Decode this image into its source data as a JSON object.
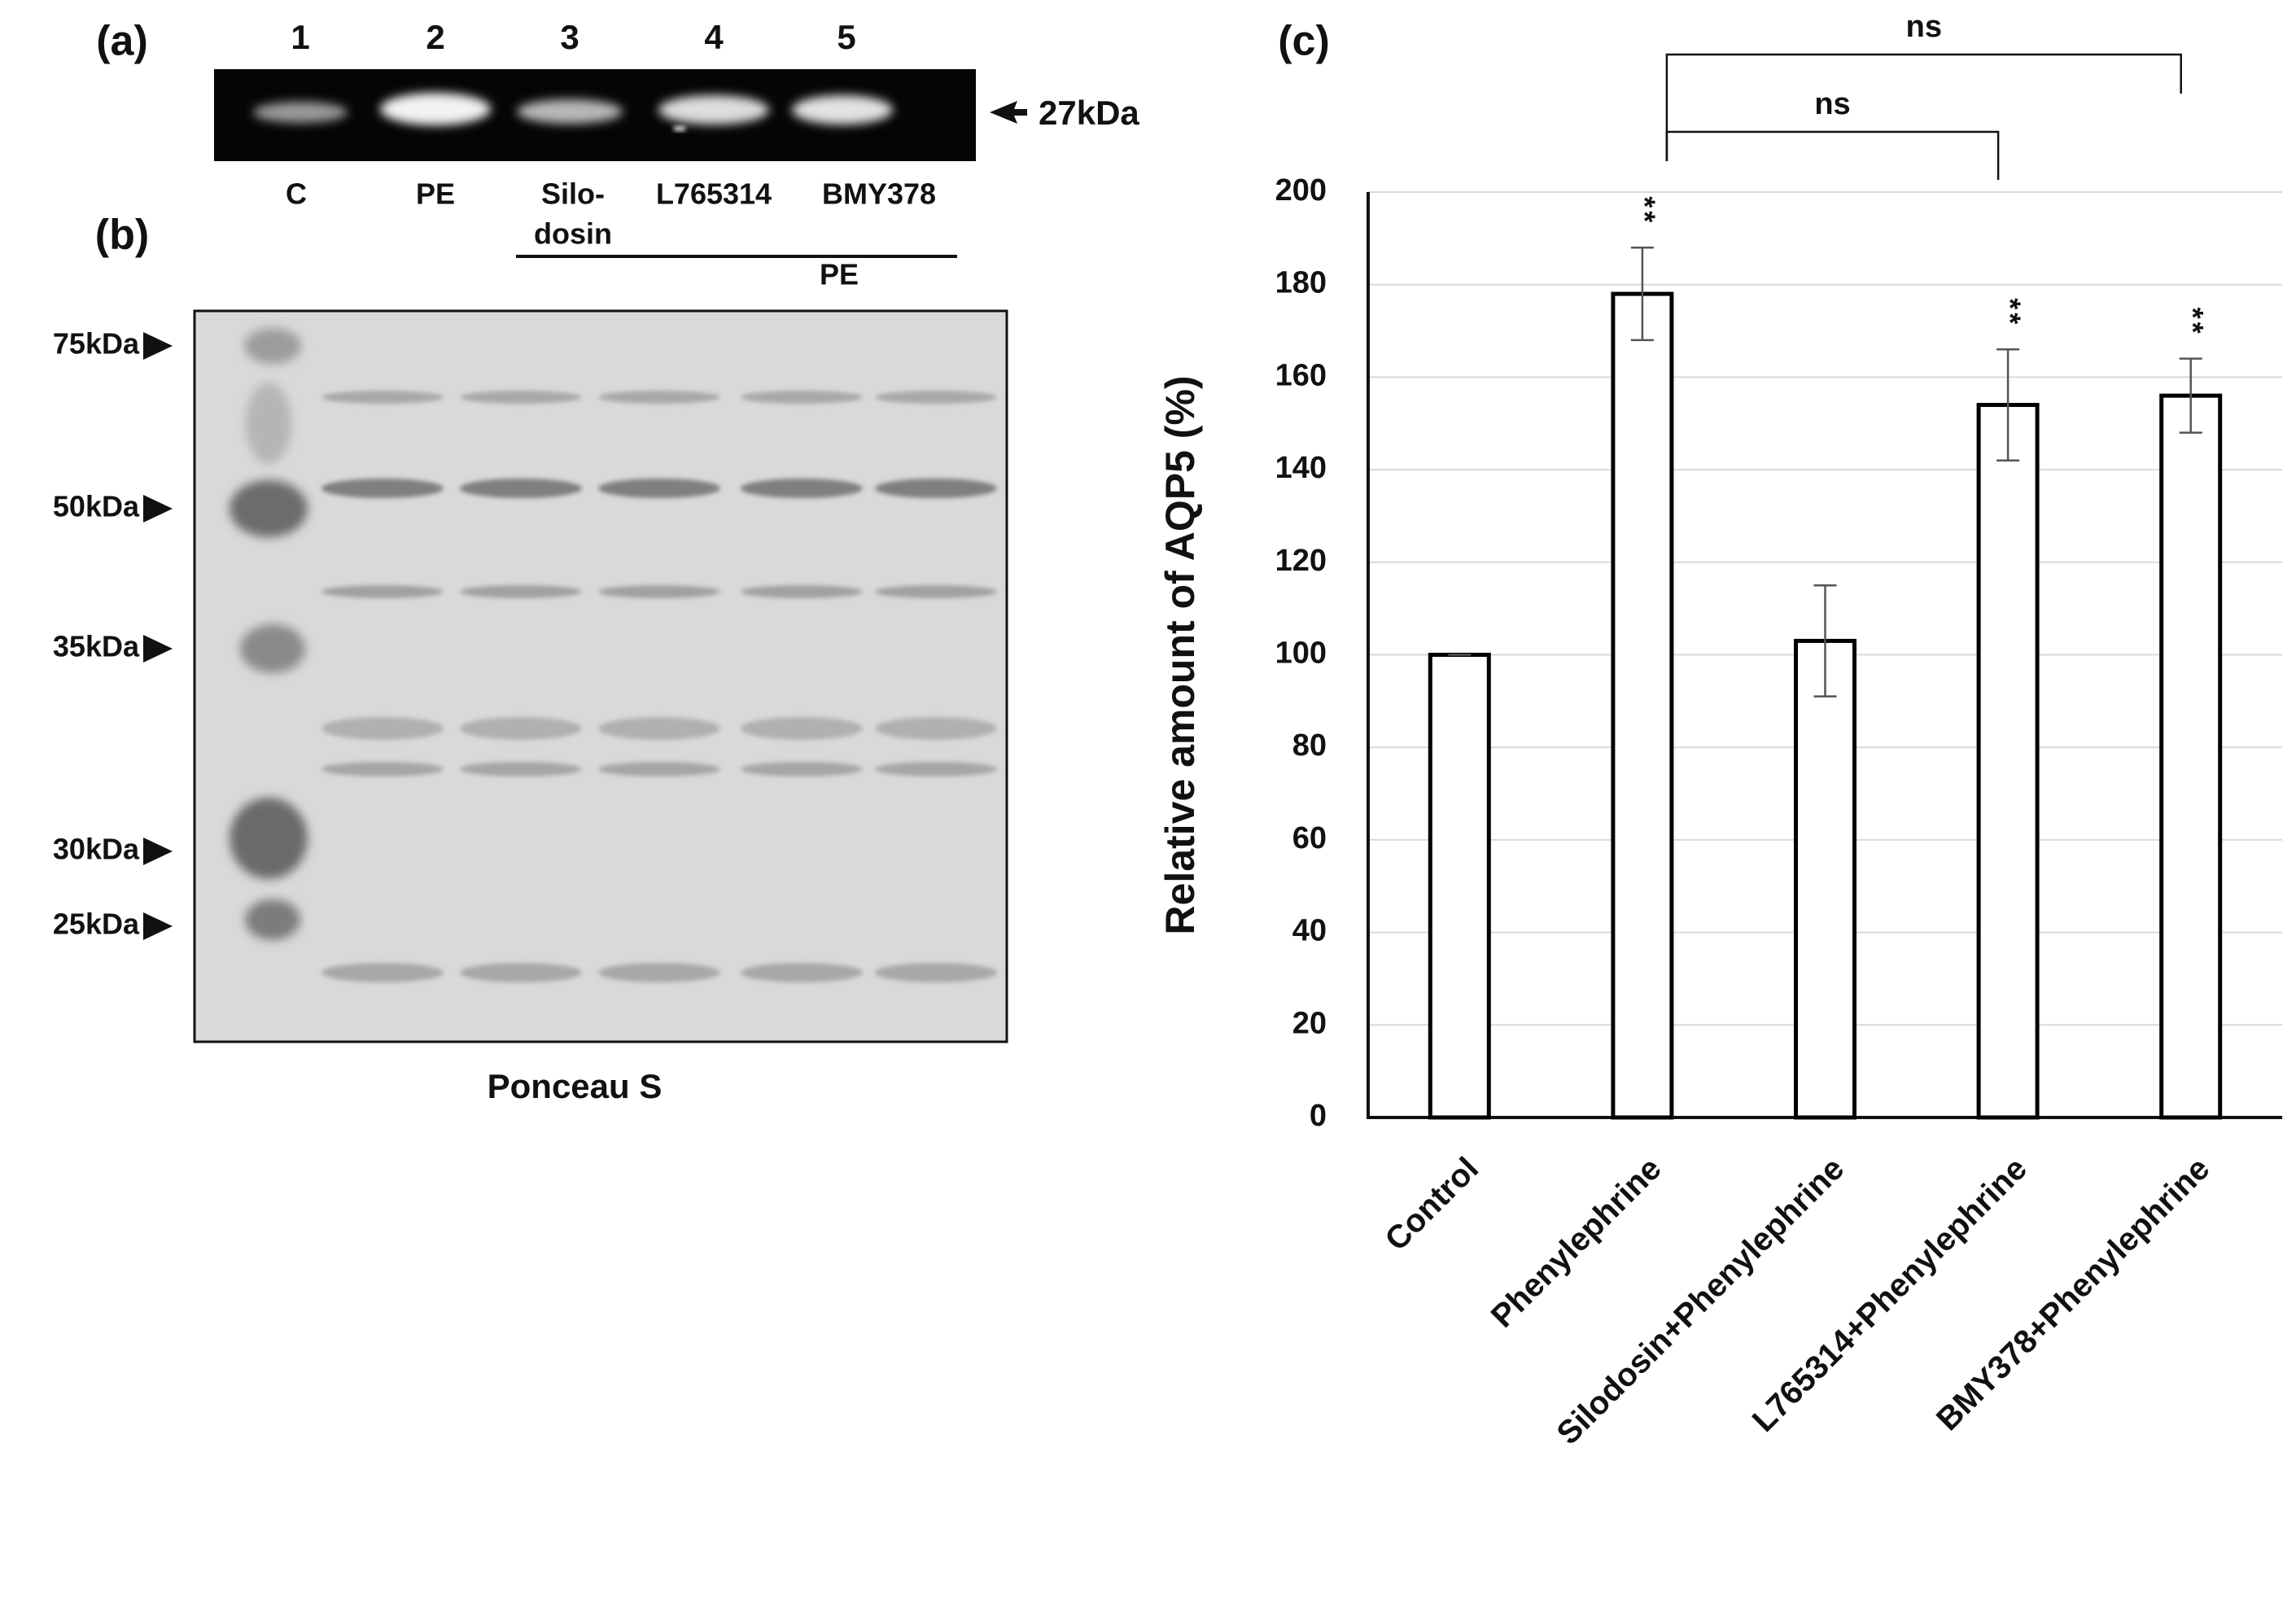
{
  "blot_a": {
    "panel_label": "(a)",
    "lane_numbers": [
      "1",
      "2",
      "3",
      "4",
      "5"
    ],
    "lane_labels": [
      "C",
      "PE",
      "Silo-",
      "L765314",
      "BMY378"
    ],
    "lane_label_continuation": "dosin",
    "group_label": "PE",
    "marker": "27kDa"
  },
  "blot_b": {
    "panel_label": "(b)",
    "markers": [
      "75kDa",
      "50kDa",
      "35kDa",
      "30kDa",
      "25kDa"
    ],
    "caption": "Ponceau S"
  },
  "chart_data": {
    "type": "bar",
    "panel_label": "(c)",
    "y_label": "Relative amount of AQP5 (%)",
    "categories": [
      "Control",
      "Phenylephrine",
      "Silodosin+Phenylephrine",
      "L765314+Phenylephrine",
      "BMY378+Phenylephrine"
    ],
    "values": [
      100,
      178,
      103,
      154,
      156
    ],
    "errors": [
      0,
      10,
      12,
      12,
      8
    ],
    "significance": [
      null,
      "**",
      null,
      "**",
      "**"
    ],
    "comparisons": [
      {
        "from": 1,
        "to": 3,
        "label": "ns"
      },
      {
        "from": 1,
        "to": 4,
        "label": "ns"
      }
    ],
    "color": "#ffffff",
    "edge_color": "#000000",
    "ylim": [
      0,
      200
    ],
    "yticks": [
      0,
      20,
      40,
      60,
      80,
      100,
      120,
      140,
      160,
      180,
      200
    ],
    "grid": true
  }
}
